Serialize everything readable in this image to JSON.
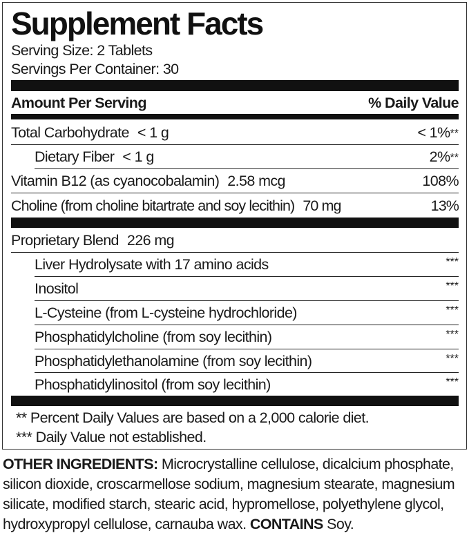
{
  "title": "Supplement Facts",
  "serving_size": "Serving Size: 2 Tablets",
  "servings_per_container": "Servings Per Container: 30",
  "header": {
    "amount": "Amount Per Serving",
    "dv": "% Daily Value"
  },
  "nutrients": [
    {
      "name": "Total Carbohydrate",
      "amount": "< 1 g",
      "dv": "< 1%",
      "mark": "**"
    },
    {
      "name": "Dietary Fiber",
      "amount": "< 1 g",
      "dv": "2%",
      "mark": "**"
    },
    {
      "name": "Vitamin B12 (as cyanocobalamin)",
      "amount": "2.58 mcg",
      "dv": "108%",
      "mark": ""
    },
    {
      "name": "Choline (from choline bitartrate and soy lecithin)",
      "amount": "70 mg",
      "dv": "13%",
      "mark": ""
    }
  ],
  "blend": {
    "name": "Proprietary Blend",
    "amount": "226 mg",
    "items": [
      {
        "name": "Liver Hydrolysate with 17 amino acids",
        "dv": "***"
      },
      {
        "name": "Inositol",
        "dv": "***"
      },
      {
        "name": "L-Cysteine (from L-cysteine hydrochloride)",
        "dv": "***"
      },
      {
        "name": "Phosphatidylcholine (from soy lecithin)",
        "dv": "***"
      },
      {
        "name": "Phosphatidylethanolamine (from soy lecithin)",
        "dv": "***"
      },
      {
        "name": "Phosphatidylinositol (from soy lecithin)",
        "dv": "***"
      }
    ]
  },
  "footnotes": [
    "** Percent Daily Values are based on a 2,000 calorie diet.",
    "*** Daily Value not established."
  ],
  "other": {
    "label": "OTHER INGREDIENTS:",
    "text": " Microcrystalline cellulose, dicalcium phosphate, silicon dioxide, croscarmellose sodium, magnesium stearate, magnesium silicate, modified starch, stearic acid, hypromellose, polyethylene glycol, hydroxypropyl cellulose, carnauba wax. ",
    "contains_label": "CONTAINS",
    "contains_text": " Soy."
  }
}
